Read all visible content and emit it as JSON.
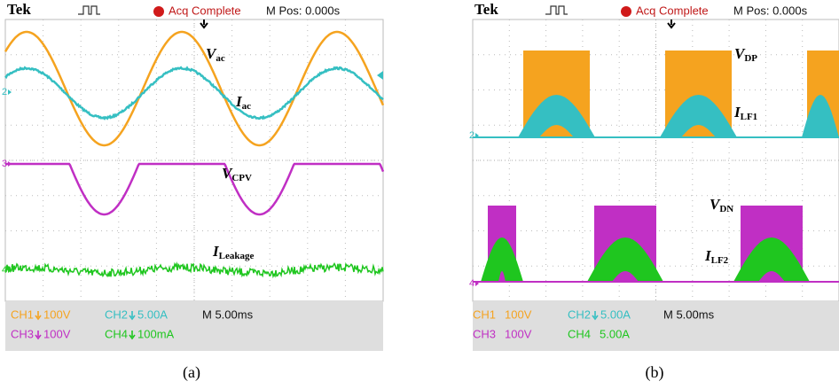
{
  "panels": [
    {
      "header": {
        "brand": "Tek",
        "status": "Acq Complete",
        "position": "M Pos: 0.000s"
      },
      "channel_markers": [
        "2",
        "3",
        "4"
      ],
      "trace_labels": [
        {
          "main": "V",
          "sub": "ac"
        },
        {
          "main": "I",
          "sub": "ac"
        },
        {
          "main": "V",
          "sub": "CPV"
        },
        {
          "main": "I",
          "sub": "Leakage"
        }
      ],
      "readouts": [
        {
          "channel": "CH1",
          "scale": "100V"
        },
        {
          "channel": "CH2",
          "scale": "5.00A"
        },
        {
          "channel": "CH3",
          "scale": "100V"
        },
        {
          "channel": "CH4",
          "scale": "100mA"
        }
      ],
      "timebase": "M 5.00ms",
      "caption": "(a)"
    },
    {
      "header": {
        "brand": "Tek",
        "status": "Acq Complete",
        "position": "M Pos: 0.000s"
      },
      "channel_markers": [
        "2",
        "4"
      ],
      "trace_labels": [
        {
          "main": "V",
          "sub": "DP"
        },
        {
          "main": "I",
          "sub": "LF1"
        },
        {
          "main": "V",
          "sub": "DN"
        },
        {
          "main": "I",
          "sub": "LF2"
        }
      ],
      "readouts": [
        {
          "channel": "CH1",
          "scale": "100V"
        },
        {
          "channel": "CH2",
          "scale": "5.00A"
        },
        {
          "channel": "CH3",
          "scale": "100V"
        },
        {
          "channel": "CH4",
          "scale": "5.00A"
        }
      ],
      "timebase": "M 5.00ms",
      "caption": "(b)"
    }
  ]
}
